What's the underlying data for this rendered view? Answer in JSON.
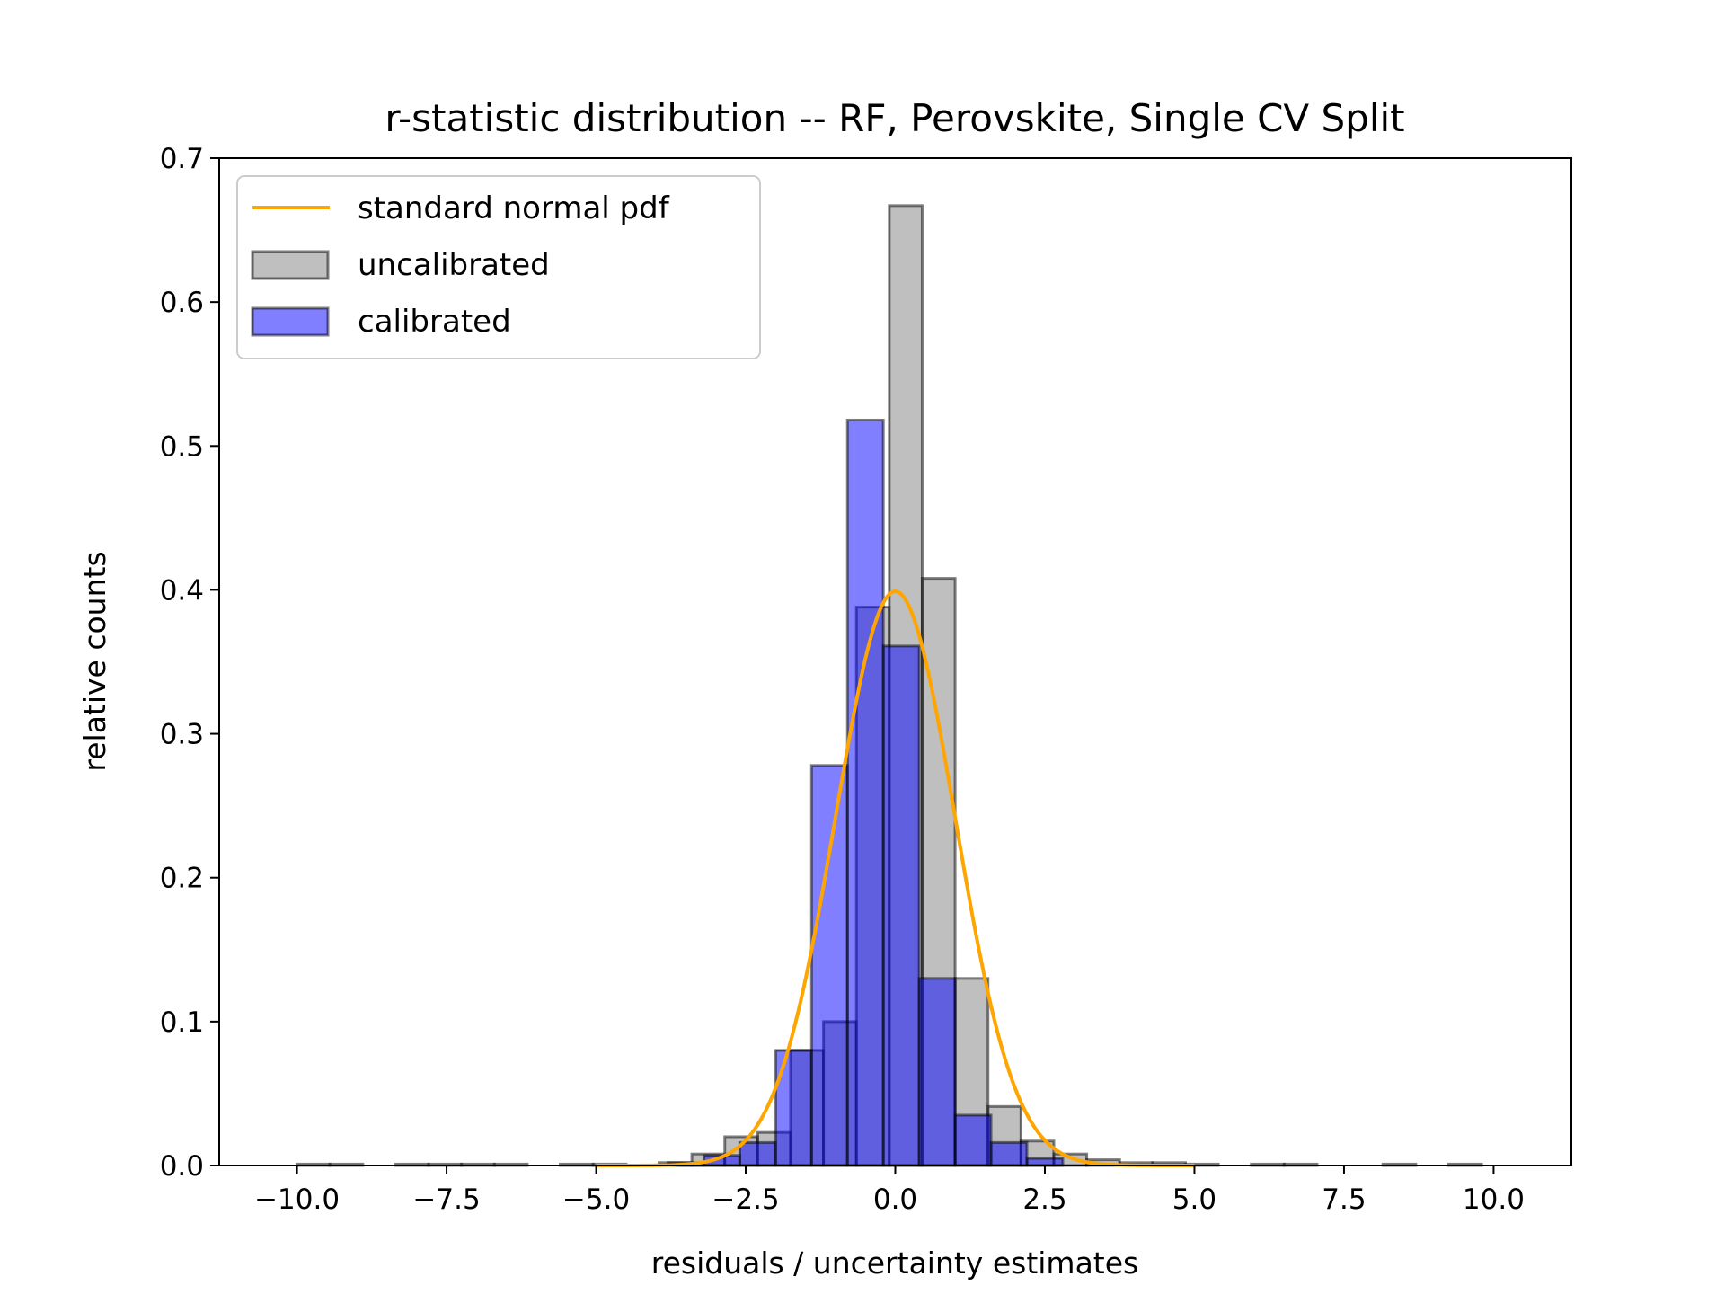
{
  "chart_data": {
    "type": "bar",
    "title": "r-statistic distribution -- RF, Perovskite, Single CV Split",
    "xlabel": "residuals / uncertainty estimates",
    "ylabel": "relative counts",
    "xlim": [
      -11.3,
      11.3
    ],
    "ylim": [
      0,
      0.7
    ],
    "xticks": [
      -10.0,
      -7.5,
      -5.0,
      -2.5,
      0.0,
      2.5,
      5.0,
      7.5,
      10.0
    ],
    "xtick_labels": [
      "−10.0",
      "−7.5",
      "−5.0",
      "−2.5",
      "0.0",
      "2.5",
      "5.0",
      "7.5",
      "10.0"
    ],
    "yticks": [
      0.0,
      0.1,
      0.2,
      0.3,
      0.4,
      0.5,
      0.6,
      0.7
    ],
    "ytick_labels": [
      "0.0",
      "0.1",
      "0.2",
      "0.3",
      "0.4",
      "0.5",
      "0.6",
      "0.7"
    ],
    "grid": false,
    "legend_position": "top-left",
    "series": [
      {
        "name": "standard normal pdf",
        "kind": "line",
        "color": "#ffa500",
        "function": "standard normal pdf",
        "x_range": [
          -5.0,
          5.0
        ]
      },
      {
        "name": "uncalibrated",
        "kind": "histogram",
        "color": "#808080",
        "edge_color": "#000000",
        "bin_edges": [
          -10.0,
          -9.45,
          -8.9,
          -8.35,
          -7.8,
          -7.25,
          -6.7,
          -6.15,
          -5.6,
          -5.05,
          -4.5,
          -3.95,
          -3.4,
          -2.85,
          -2.3,
          -1.75,
          -1.2,
          -0.65,
          -0.1,
          0.45,
          1.0,
          1.55,
          2.1,
          2.65,
          3.2,
          3.75,
          4.3,
          4.85,
          5.4,
          5.95,
          6.5,
          7.05,
          7.6,
          8.15,
          8.7,
          9.25,
          9.8,
          10.35
        ],
        "values": [
          0.001,
          0.001,
          0.0,
          0.001,
          0.001,
          0.001,
          0.001,
          0.0,
          0.001,
          0.001,
          0.0,
          0.002,
          0.008,
          0.02,
          0.023,
          0.08,
          0.1,
          0.388,
          0.667,
          0.408,
          0.13,
          0.041,
          0.017,
          0.008,
          0.004,
          0.002,
          0.002,
          0.001,
          0.0,
          0.001,
          0.001,
          0.0,
          0.0,
          0.001,
          0.0,
          0.001,
          0.0
        ]
      },
      {
        "name": "calibrated",
        "kind": "histogram",
        "color": "#0000ff",
        "edge_color": "#000000",
        "bin_edges": [
          -5.0,
          -4.4,
          -3.8,
          -3.2,
          -2.6,
          -2.0,
          -1.4,
          -0.8,
          -0.2,
          0.4,
          1.0,
          1.6,
          2.2,
          2.8
        ],
        "values": [
          0.0,
          0.0,
          0.002,
          0.007,
          0.016,
          0.08,
          0.278,
          0.518,
          0.361,
          0.13,
          0.035,
          0.016,
          0.005
        ]
      }
    ]
  }
}
